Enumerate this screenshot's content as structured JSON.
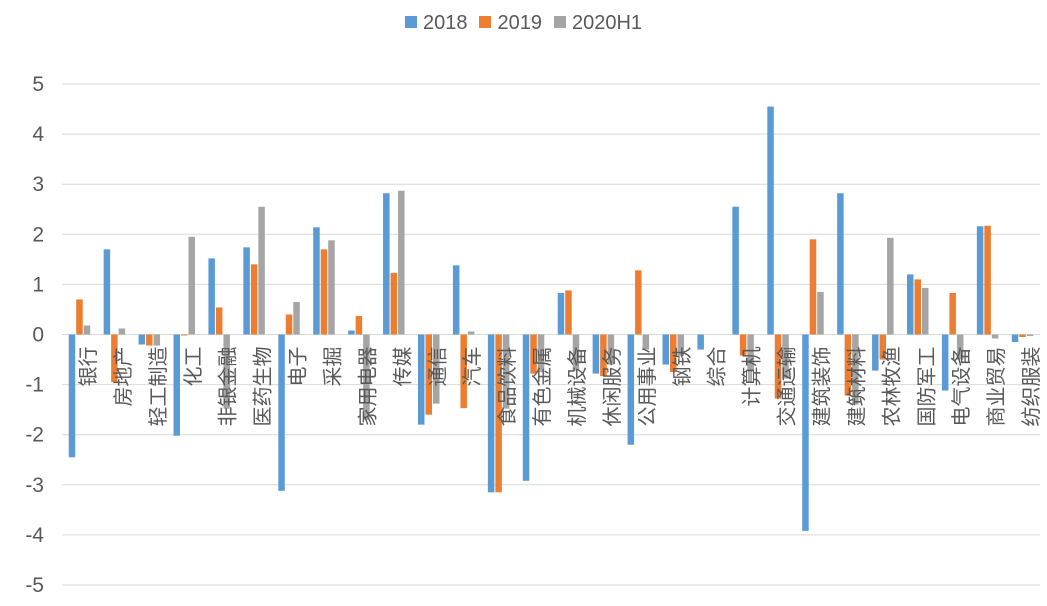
{
  "chart_data": {
    "type": "bar",
    "title": "",
    "xlabel": "",
    "ylabel": "",
    "ylim": [
      -5,
      5
    ],
    "yticks": [
      5,
      4,
      3,
      2,
      1,
      0,
      -1,
      -2,
      -3,
      -4,
      -5
    ],
    "grid": true,
    "legend_position": "top-center",
    "categories": [
      "银行",
      "房地产",
      "轻工制造",
      "化工",
      "非银金融",
      "医药生物",
      "电子",
      "采掘",
      "家用电器",
      "传媒",
      "通信",
      "汽车",
      "食品饮料",
      "有色金属",
      "机械设备",
      "休闲服务",
      "公用事业",
      "钢铁",
      "综合",
      "计算机",
      "交通运输",
      "建筑装饰",
      "建筑材料",
      "农林牧渔",
      "国防军工",
      "电气设备",
      "商业贸易",
      "纺织服装"
    ],
    "series": [
      {
        "name": "2018",
        "color": "#5b9bd5",
        "values": [
          -2.45,
          1.7,
          -0.2,
          -2.02,
          1.52,
          1.74,
          -3.12,
          2.14,
          0.08,
          2.82,
          -1.8,
          1.38,
          -3.15,
          -2.92,
          0.83,
          -0.78,
          -2.2,
          -0.6,
          -0.3,
          2.55,
          4.55,
          -3.92,
          2.82,
          -0.72,
          1.2,
          -1.12,
          2.16,
          -0.15
        ]
      },
      {
        "name": "2019",
        "color": "#ed7d31",
        "values": [
          0.7,
          -0.95,
          -0.22,
          -0.02,
          0.54,
          1.4,
          0.4,
          1.7,
          0.37,
          1.23,
          -1.6,
          -1.47,
          -3.15,
          -0.78,
          0.88,
          -0.83,
          1.28,
          -0.75,
          0.0,
          -0.42,
          -1.28,
          1.9,
          -1.22,
          -0.5,
          1.1,
          0.83,
          2.17,
          -0.05
        ]
      },
      {
        "name": "2020H1",
        "color": "#a5a5a5",
        "values": [
          0.18,
          0.12,
          -0.22,
          1.95,
          -1.48,
          2.55,
          0.65,
          1.88,
          -1.7,
          2.87,
          -1.38,
          0.06,
          -1.48,
          -0.75,
          -0.72,
          -0.6,
          -0.3,
          -0.43,
          0.0,
          -0.72,
          -0.88,
          0.85,
          -1.4,
          1.93,
          0.93,
          -0.5,
          -0.08,
          -0.03
        ]
      }
    ]
  }
}
